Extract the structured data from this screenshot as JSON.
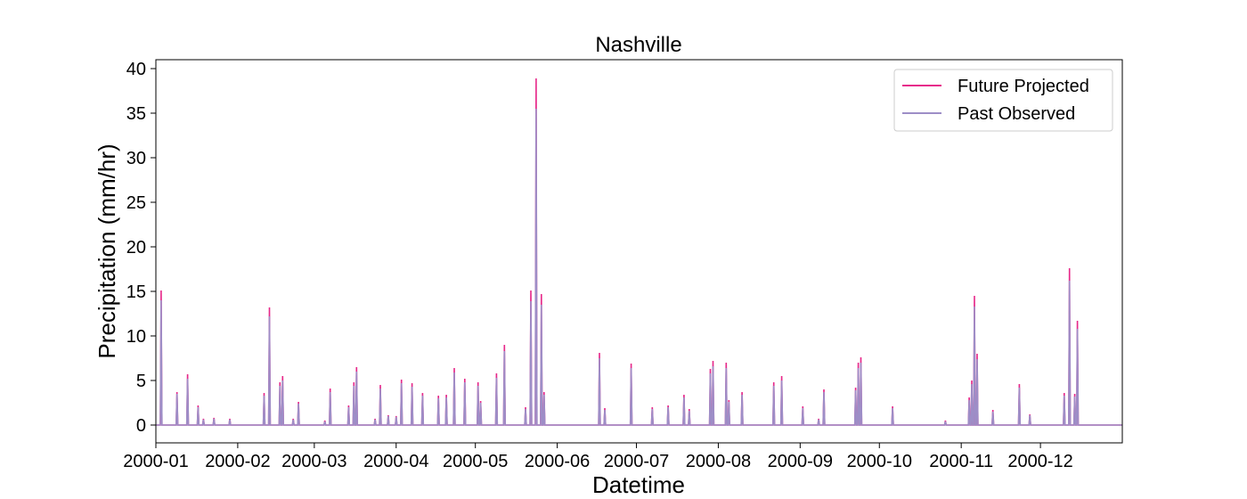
{
  "chart_data": {
    "type": "line",
    "title": "Nashville",
    "xlabel": "Datetime",
    "ylabel": "Precipitation (mm/hr)",
    "xlim": [
      "2000-01-01",
      "2000-12-31"
    ],
    "ylim": [
      -2,
      41
    ],
    "x_ticks": [
      "2000-01",
      "2000-02",
      "2000-03",
      "2000-04",
      "2000-05",
      "2000-06",
      "2000-07",
      "2000-08",
      "2000-09",
      "2000-10",
      "2000-11",
      "2000-12"
    ],
    "y_ticks": [
      0,
      5,
      10,
      15,
      20,
      25,
      30,
      35,
      40
    ],
    "grid": false,
    "legend_position": "top-right",
    "series": [
      {
        "name": "Future Projected",
        "color": "#e7298a",
        "points": [
          [
            "2000-01-03",
            15.1
          ],
          [
            "2000-01-09",
            3.7
          ],
          [
            "2000-01-13",
            5.7
          ],
          [
            "2000-01-17",
            2.2
          ],
          [
            "2000-01-19",
            0.7
          ],
          [
            "2000-01-23",
            0.8
          ],
          [
            "2000-01-29",
            0.7
          ],
          [
            "2000-02-11",
            3.6
          ],
          [
            "2000-02-13",
            13.2
          ],
          [
            "2000-02-17",
            4.8
          ],
          [
            "2000-02-18",
            5.5
          ],
          [
            "2000-02-22",
            0.7
          ],
          [
            "2000-02-24",
            2.6
          ],
          [
            "2000-03-05",
            0.5
          ],
          [
            "2000-03-07",
            4.1
          ],
          [
            "2000-03-14",
            2.2
          ],
          [
            "2000-03-16",
            4.8
          ],
          [
            "2000-03-17",
            6.5
          ],
          [
            "2000-03-24",
            0.7
          ],
          [
            "2000-03-26",
            4.5
          ],
          [
            "2000-03-29",
            1.1
          ],
          [
            "2000-04-01",
            1.0
          ],
          [
            "2000-04-03",
            5.1
          ],
          [
            "2000-04-07",
            4.7
          ],
          [
            "2000-04-11",
            3.6
          ],
          [
            "2000-04-17",
            3.3
          ],
          [
            "2000-04-20",
            3.4
          ],
          [
            "2000-04-23",
            6.4
          ],
          [
            "2000-04-27",
            5.2
          ],
          [
            "2000-05-02",
            4.8
          ],
          [
            "2000-05-03",
            2.7
          ],
          [
            "2000-05-09",
            5.8
          ],
          [
            "2000-05-12",
            9.0
          ],
          [
            "2000-05-20",
            2.0
          ],
          [
            "2000-05-22",
            15.1
          ],
          [
            "2000-05-24",
            38.9
          ],
          [
            "2000-05-26",
            14.7
          ],
          [
            "2000-05-27",
            3.7
          ],
          [
            "2000-06-17",
            8.1
          ],
          [
            "2000-06-19",
            1.9
          ],
          [
            "2000-06-29",
            6.9
          ],
          [
            "2000-07-07",
            2.0
          ],
          [
            "2000-07-13",
            2.2
          ],
          [
            "2000-07-19",
            3.4
          ],
          [
            "2000-07-21",
            1.8
          ],
          [
            "2000-07-29",
            6.3
          ],
          [
            "2000-07-30",
            7.2
          ],
          [
            "2000-08-04",
            7.0
          ],
          [
            "2000-08-05",
            2.8
          ],
          [
            "2000-08-10",
            3.7
          ],
          [
            "2000-08-22",
            4.8
          ],
          [
            "2000-08-25",
            5.5
          ],
          [
            "2000-09-02",
            2.1
          ],
          [
            "2000-09-08",
            0.7
          ],
          [
            "2000-09-10",
            4.0
          ],
          [
            "2000-09-22",
            4.2
          ],
          [
            "2000-09-23",
            7.0
          ],
          [
            "2000-09-24",
            7.6
          ],
          [
            "2000-10-06",
            2.1
          ],
          [
            "2000-10-26",
            0.5
          ],
          [
            "2000-11-04",
            3.1
          ],
          [
            "2000-11-05",
            5.0
          ],
          [
            "2000-11-06",
            14.5
          ],
          [
            "2000-11-07",
            8.0
          ],
          [
            "2000-11-13",
            1.7
          ],
          [
            "2000-11-23",
            4.6
          ],
          [
            "2000-11-27",
            1.2
          ],
          [
            "2000-12-10",
            3.6
          ],
          [
            "2000-12-12",
            17.6
          ],
          [
            "2000-12-14",
            3.5
          ],
          [
            "2000-12-15",
            11.7
          ]
        ]
      },
      {
        "name": "Past Observed",
        "color": "#9d8ec7",
        "points": [
          [
            "2000-01-03",
            14.0
          ],
          [
            "2000-01-09",
            3.5
          ],
          [
            "2000-01-13",
            5.2
          ],
          [
            "2000-01-17",
            2.0
          ],
          [
            "2000-01-19",
            0.6
          ],
          [
            "2000-01-23",
            0.7
          ],
          [
            "2000-01-29",
            0.6
          ],
          [
            "2000-02-11",
            3.3
          ],
          [
            "2000-02-13",
            12.2
          ],
          [
            "2000-02-17",
            4.4
          ],
          [
            "2000-02-18",
            5.0
          ],
          [
            "2000-02-22",
            0.6
          ],
          [
            "2000-02-24",
            2.4
          ],
          [
            "2000-03-05",
            0.4
          ],
          [
            "2000-03-07",
            3.7
          ],
          [
            "2000-03-14",
            2.0
          ],
          [
            "2000-03-16",
            4.4
          ],
          [
            "2000-03-17",
            6.0
          ],
          [
            "2000-03-24",
            0.6
          ],
          [
            "2000-03-26",
            4.1
          ],
          [
            "2000-03-29",
            1.0
          ],
          [
            "2000-04-01",
            0.9
          ],
          [
            "2000-04-03",
            4.7
          ],
          [
            "2000-04-07",
            4.3
          ],
          [
            "2000-04-11",
            3.3
          ],
          [
            "2000-04-17",
            3.0
          ],
          [
            "2000-04-20",
            3.1
          ],
          [
            "2000-04-23",
            5.9
          ],
          [
            "2000-04-27",
            4.8
          ],
          [
            "2000-05-02",
            4.4
          ],
          [
            "2000-05-03",
            2.5
          ],
          [
            "2000-05-09",
            5.3
          ],
          [
            "2000-05-12",
            8.3
          ],
          [
            "2000-05-20",
            1.8
          ],
          [
            "2000-05-22",
            13.9
          ],
          [
            "2000-05-24",
            35.5
          ],
          [
            "2000-05-26",
            13.5
          ],
          [
            "2000-05-27",
            3.4
          ],
          [
            "2000-06-17",
            7.5
          ],
          [
            "2000-06-19",
            1.7
          ],
          [
            "2000-06-29",
            6.4
          ],
          [
            "2000-07-07",
            1.8
          ],
          [
            "2000-07-13",
            2.0
          ],
          [
            "2000-07-19",
            3.1
          ],
          [
            "2000-07-21",
            1.6
          ],
          [
            "2000-07-29",
            5.8
          ],
          [
            "2000-07-30",
            6.6
          ],
          [
            "2000-08-04",
            6.4
          ],
          [
            "2000-08-05",
            2.6
          ],
          [
            "2000-08-10",
            3.4
          ],
          [
            "2000-08-22",
            4.4
          ],
          [
            "2000-08-25",
            5.0
          ],
          [
            "2000-09-02",
            1.9
          ],
          [
            "2000-09-08",
            0.6
          ],
          [
            "2000-09-10",
            3.7
          ],
          [
            "2000-09-22",
            3.9
          ],
          [
            "2000-09-23",
            6.4
          ],
          [
            "2000-09-24",
            7.0
          ],
          [
            "2000-10-06",
            1.9
          ],
          [
            "2000-10-26",
            0.4
          ],
          [
            "2000-11-04",
            2.8
          ],
          [
            "2000-11-05",
            4.6
          ],
          [
            "2000-11-06",
            13.3
          ],
          [
            "2000-11-07",
            7.4
          ],
          [
            "2000-11-13",
            1.5
          ],
          [
            "2000-11-23",
            4.2
          ],
          [
            "2000-11-27",
            1.1
          ],
          [
            "2000-12-10",
            3.3
          ],
          [
            "2000-12-12",
            16.2
          ],
          [
            "2000-12-14",
            3.2
          ],
          [
            "2000-12-15",
            10.8
          ]
        ]
      }
    ]
  }
}
